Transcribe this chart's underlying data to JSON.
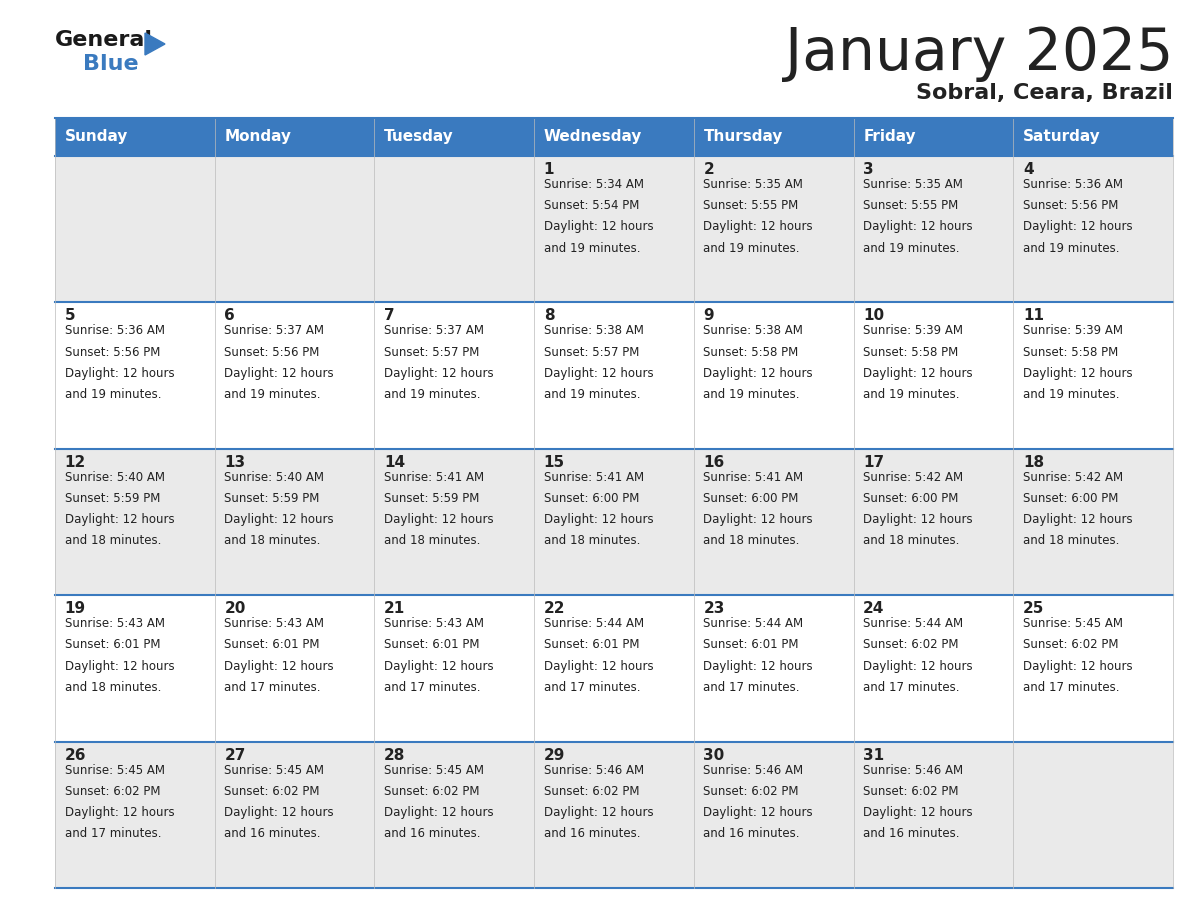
{
  "title": "January 2025",
  "subtitle": "Sobral, Ceara, Brazil",
  "header_color": "#3a7abf",
  "header_text_color": "#ffffff",
  "day_headers": [
    "Sunday",
    "Monday",
    "Tuesday",
    "Wednesday",
    "Thursday",
    "Friday",
    "Saturday"
  ],
  "background_color": "#ffffff",
  "cell_bg_even": "#eaeaea",
  "cell_bg_odd": "#ffffff",
  "grid_line_color": "#3a7abf",
  "text_color": "#222222",
  "days": [
    {
      "day": 1,
      "col": 3,
      "row": 0,
      "sunrise": "5:34 AM",
      "sunset": "5:54 PM",
      "daylight_hours": 12,
      "daylight_minutes": 19
    },
    {
      "day": 2,
      "col": 4,
      "row": 0,
      "sunrise": "5:35 AM",
      "sunset": "5:55 PM",
      "daylight_hours": 12,
      "daylight_minutes": 19
    },
    {
      "day": 3,
      "col": 5,
      "row": 0,
      "sunrise": "5:35 AM",
      "sunset": "5:55 PM",
      "daylight_hours": 12,
      "daylight_minutes": 19
    },
    {
      "day": 4,
      "col": 6,
      "row": 0,
      "sunrise": "5:36 AM",
      "sunset": "5:56 PM",
      "daylight_hours": 12,
      "daylight_minutes": 19
    },
    {
      "day": 5,
      "col": 0,
      "row": 1,
      "sunrise": "5:36 AM",
      "sunset": "5:56 PM",
      "daylight_hours": 12,
      "daylight_minutes": 19
    },
    {
      "day": 6,
      "col": 1,
      "row": 1,
      "sunrise": "5:37 AM",
      "sunset": "5:56 PM",
      "daylight_hours": 12,
      "daylight_minutes": 19
    },
    {
      "day": 7,
      "col": 2,
      "row": 1,
      "sunrise": "5:37 AM",
      "sunset": "5:57 PM",
      "daylight_hours": 12,
      "daylight_minutes": 19
    },
    {
      "day": 8,
      "col": 3,
      "row": 1,
      "sunrise": "5:38 AM",
      "sunset": "5:57 PM",
      "daylight_hours": 12,
      "daylight_minutes": 19
    },
    {
      "day": 9,
      "col": 4,
      "row": 1,
      "sunrise": "5:38 AM",
      "sunset": "5:58 PM",
      "daylight_hours": 12,
      "daylight_minutes": 19
    },
    {
      "day": 10,
      "col": 5,
      "row": 1,
      "sunrise": "5:39 AM",
      "sunset": "5:58 PM",
      "daylight_hours": 12,
      "daylight_minutes": 19
    },
    {
      "day": 11,
      "col": 6,
      "row": 1,
      "sunrise": "5:39 AM",
      "sunset": "5:58 PM",
      "daylight_hours": 12,
      "daylight_minutes": 19
    },
    {
      "day": 12,
      "col": 0,
      "row": 2,
      "sunrise": "5:40 AM",
      "sunset": "5:59 PM",
      "daylight_hours": 12,
      "daylight_minutes": 18
    },
    {
      "day": 13,
      "col": 1,
      "row": 2,
      "sunrise": "5:40 AM",
      "sunset": "5:59 PM",
      "daylight_hours": 12,
      "daylight_minutes": 18
    },
    {
      "day": 14,
      "col": 2,
      "row": 2,
      "sunrise": "5:41 AM",
      "sunset": "5:59 PM",
      "daylight_hours": 12,
      "daylight_minutes": 18
    },
    {
      "day": 15,
      "col": 3,
      "row": 2,
      "sunrise": "5:41 AM",
      "sunset": "6:00 PM",
      "daylight_hours": 12,
      "daylight_minutes": 18
    },
    {
      "day": 16,
      "col": 4,
      "row": 2,
      "sunrise": "5:41 AM",
      "sunset": "6:00 PM",
      "daylight_hours": 12,
      "daylight_minutes": 18
    },
    {
      "day": 17,
      "col": 5,
      "row": 2,
      "sunrise": "5:42 AM",
      "sunset": "6:00 PM",
      "daylight_hours": 12,
      "daylight_minutes": 18
    },
    {
      "day": 18,
      "col": 6,
      "row": 2,
      "sunrise": "5:42 AM",
      "sunset": "6:00 PM",
      "daylight_hours": 12,
      "daylight_minutes": 18
    },
    {
      "day": 19,
      "col": 0,
      "row": 3,
      "sunrise": "5:43 AM",
      "sunset": "6:01 PM",
      "daylight_hours": 12,
      "daylight_minutes": 18
    },
    {
      "day": 20,
      "col": 1,
      "row": 3,
      "sunrise": "5:43 AM",
      "sunset": "6:01 PM",
      "daylight_hours": 12,
      "daylight_minutes": 17
    },
    {
      "day": 21,
      "col": 2,
      "row": 3,
      "sunrise": "5:43 AM",
      "sunset": "6:01 PM",
      "daylight_hours": 12,
      "daylight_minutes": 17
    },
    {
      "day": 22,
      "col": 3,
      "row": 3,
      "sunrise": "5:44 AM",
      "sunset": "6:01 PM",
      "daylight_hours": 12,
      "daylight_minutes": 17
    },
    {
      "day": 23,
      "col": 4,
      "row": 3,
      "sunrise": "5:44 AM",
      "sunset": "6:01 PM",
      "daylight_hours": 12,
      "daylight_minutes": 17
    },
    {
      "day": 24,
      "col": 5,
      "row": 3,
      "sunrise": "5:44 AM",
      "sunset": "6:02 PM",
      "daylight_hours": 12,
      "daylight_minutes": 17
    },
    {
      "day": 25,
      "col": 6,
      "row": 3,
      "sunrise": "5:45 AM",
      "sunset": "6:02 PM",
      "daylight_hours": 12,
      "daylight_minutes": 17
    },
    {
      "day": 26,
      "col": 0,
      "row": 4,
      "sunrise": "5:45 AM",
      "sunset": "6:02 PM",
      "daylight_hours": 12,
      "daylight_minutes": 17
    },
    {
      "day": 27,
      "col": 1,
      "row": 4,
      "sunrise": "5:45 AM",
      "sunset": "6:02 PM",
      "daylight_hours": 12,
      "daylight_minutes": 16
    },
    {
      "day": 28,
      "col": 2,
      "row": 4,
      "sunrise": "5:45 AM",
      "sunset": "6:02 PM",
      "daylight_hours": 12,
      "daylight_minutes": 16
    },
    {
      "day": 29,
      "col": 3,
      "row": 4,
      "sunrise": "5:46 AM",
      "sunset": "6:02 PM",
      "daylight_hours": 12,
      "daylight_minutes": 16
    },
    {
      "day": 30,
      "col": 4,
      "row": 4,
      "sunrise": "5:46 AM",
      "sunset": "6:02 PM",
      "daylight_hours": 12,
      "daylight_minutes": 16
    },
    {
      "day": 31,
      "col": 5,
      "row": 4,
      "sunrise": "5:46 AM",
      "sunset": "6:02 PM",
      "daylight_hours": 12,
      "daylight_minutes": 16
    }
  ],
  "logo_text1": "General",
  "logo_text2": "Blue",
  "logo_color1": "#1a1a1a",
  "logo_color2": "#3a7abf",
  "title_fontsize": 42,
  "subtitle_fontsize": 16,
  "header_fontsize": 11,
  "day_num_fontsize": 11,
  "info_fontsize": 8.5
}
